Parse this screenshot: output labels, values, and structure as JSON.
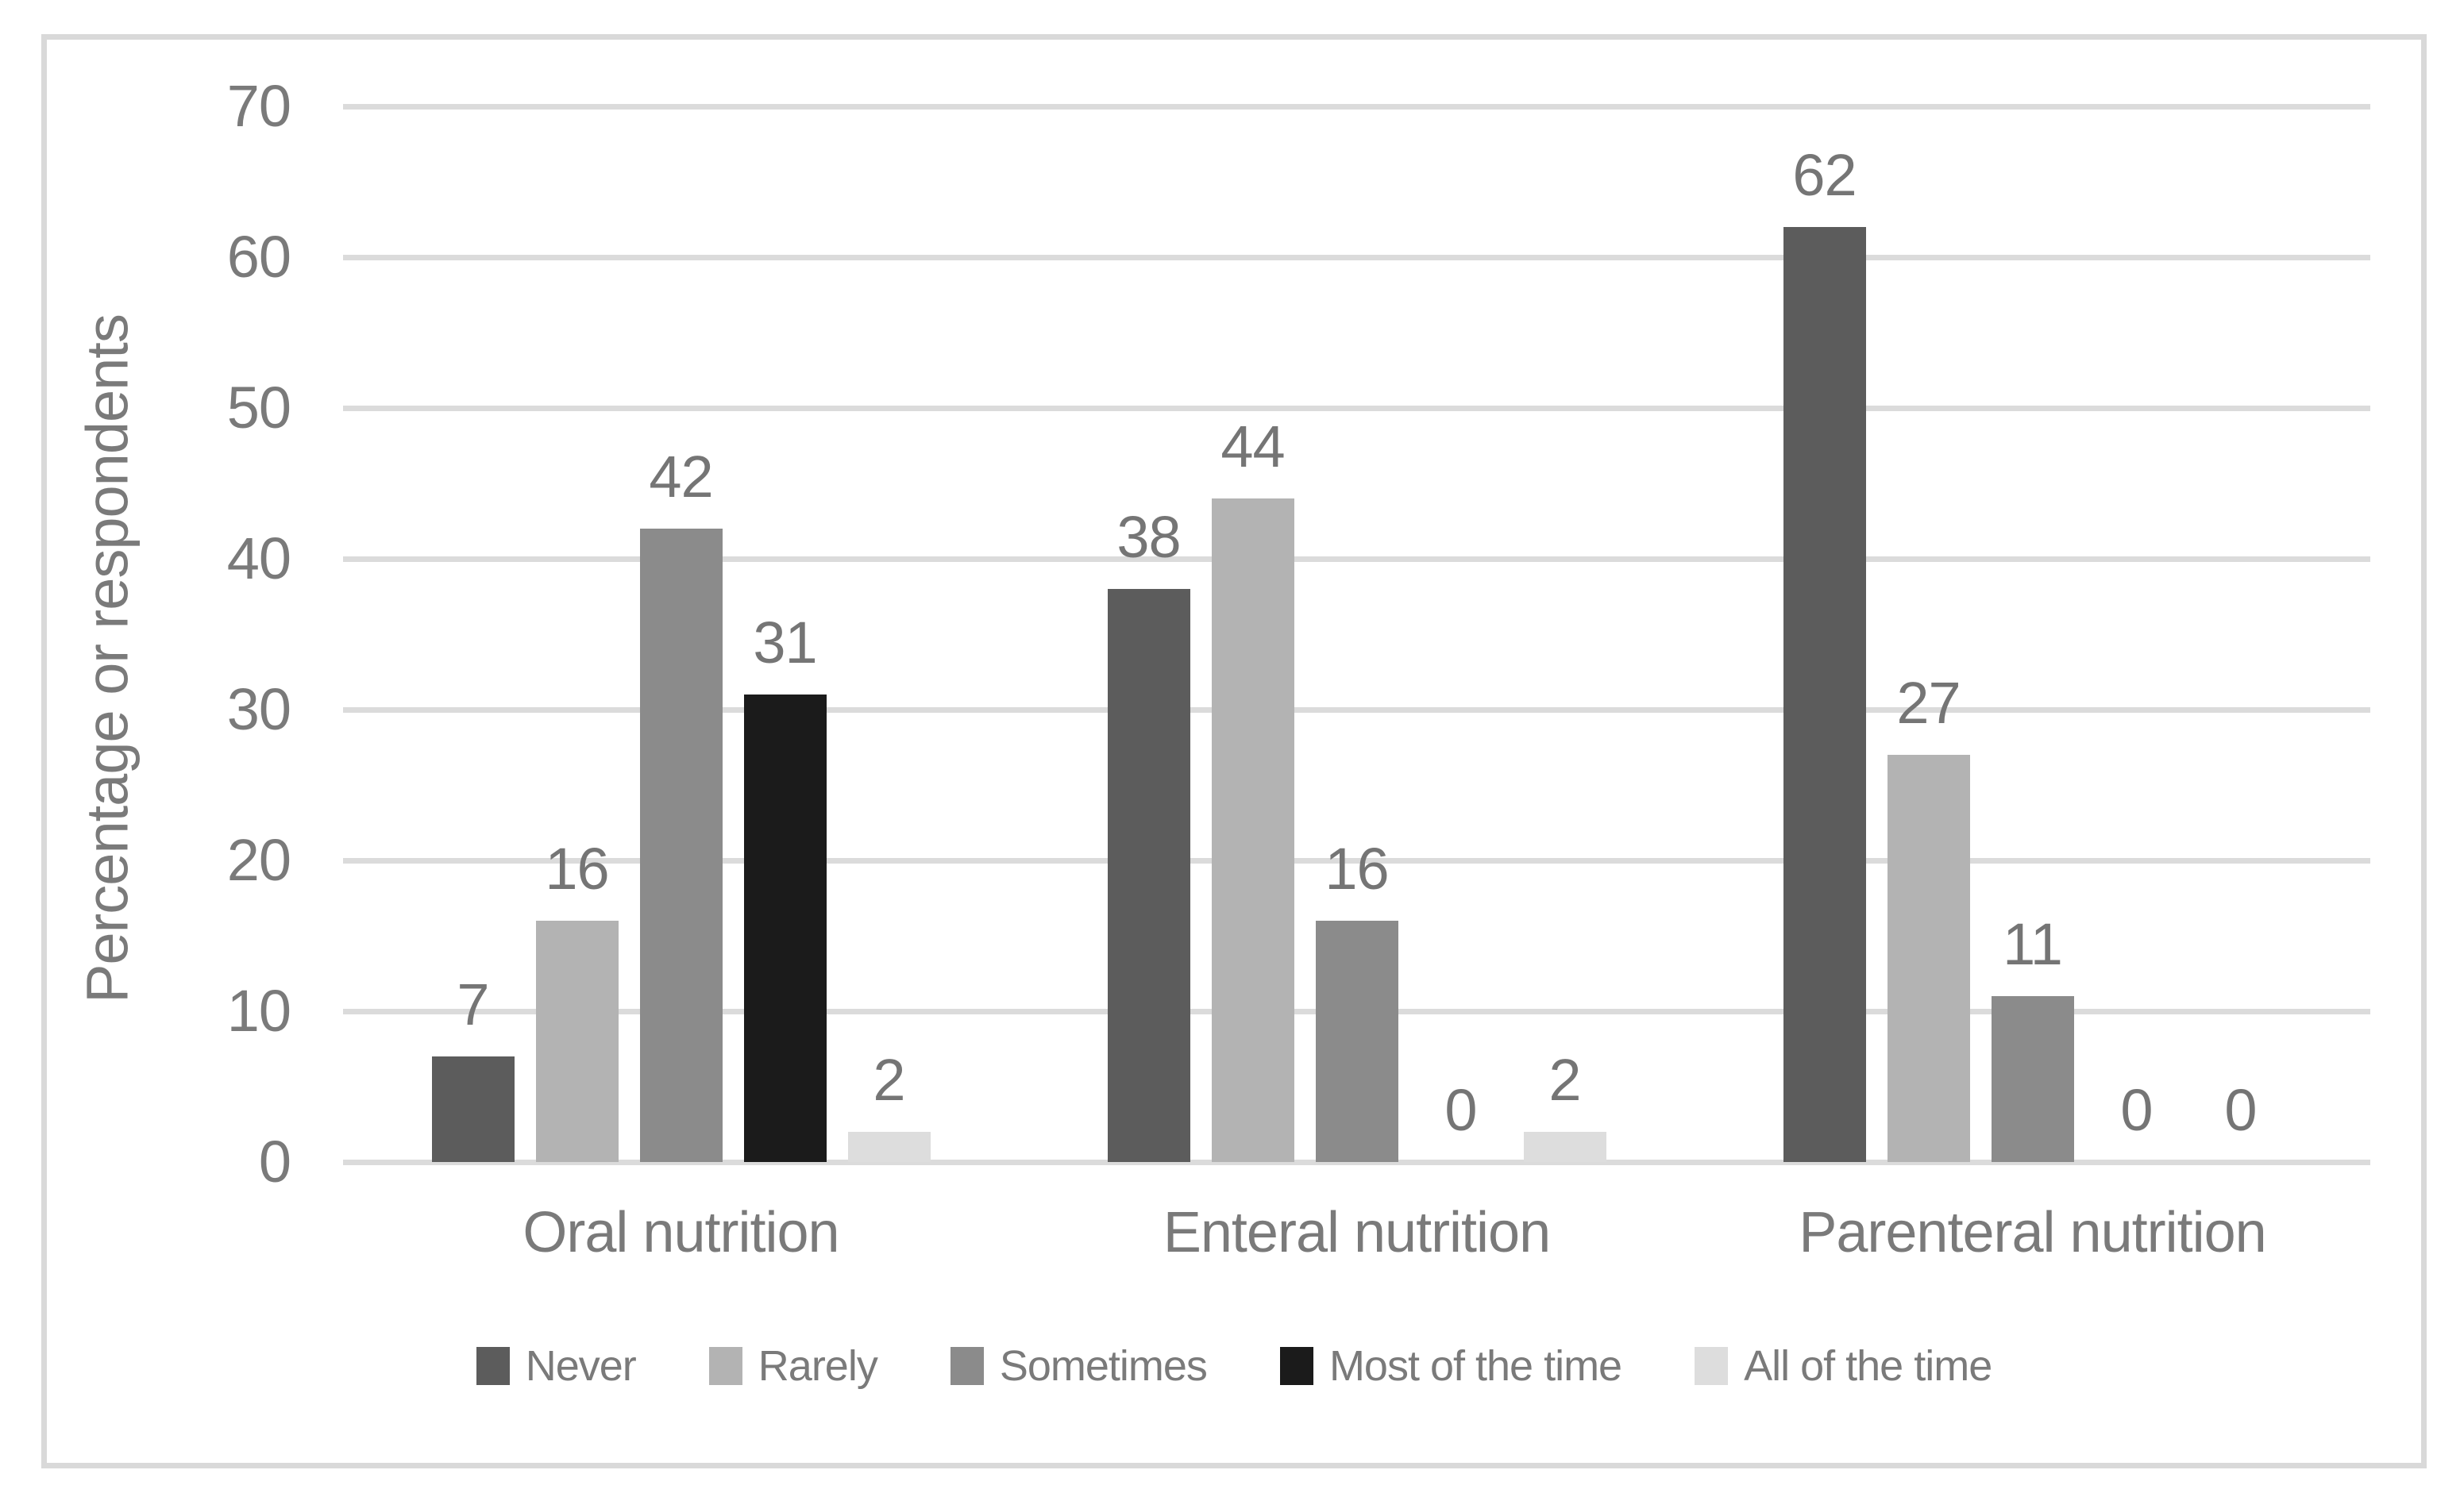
{
  "chart_data": {
    "type": "bar",
    "title": "",
    "categories": [
      "Oral nutrition",
      "Enteral nutrition",
      "Parenteral nutrition"
    ],
    "series": [
      {
        "name": "Never",
        "color": "#5c5c5c",
        "values": [
          7,
          38,
          62
        ]
      },
      {
        "name": "Rarely",
        "color": "#b3b3b3",
        "values": [
          16,
          44,
          27
        ]
      },
      {
        "name": "Sometimes",
        "color": "#8b8b8b",
        "values": [
          42,
          16,
          11
        ]
      },
      {
        "name": "Most of the time",
        "color": "#1b1b1b",
        "values": [
          31,
          0,
          0
        ]
      },
      {
        "name": "All of the time",
        "color": "#dddddd",
        "values": [
          2,
          2,
          0
        ]
      }
    ],
    "xlabel": "",
    "ylabel": "Percentage or respondents",
    "ylim": [
      0,
      70
    ],
    "yticks": [
      0,
      10,
      20,
      30,
      40,
      50,
      60,
      70
    ],
    "grid": true,
    "data_labels": true,
    "legend_position": "bottom"
  },
  "style": {
    "gridline_color": "#dbdbdb",
    "frame_border_color": "#d9d9d9",
    "text_color": "#7a7a7a",
    "background_color": "#ffffff"
  }
}
